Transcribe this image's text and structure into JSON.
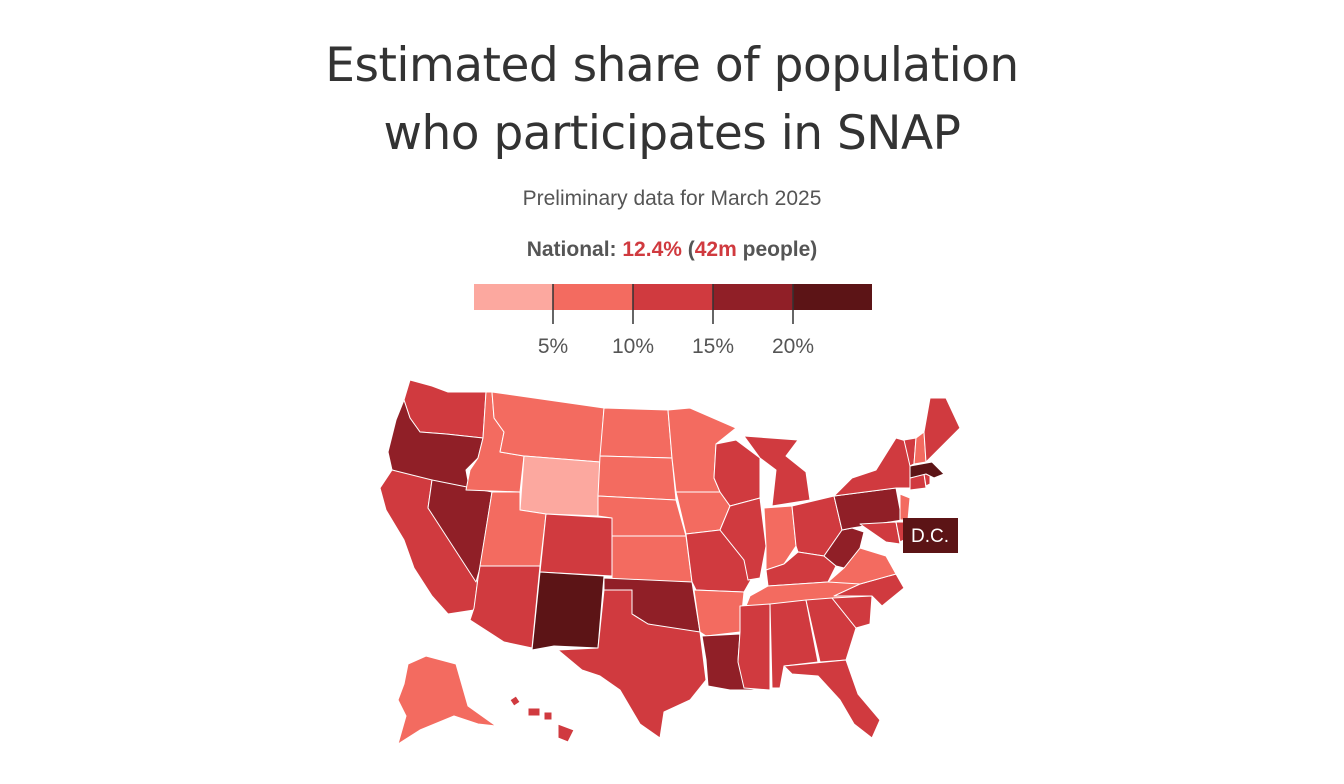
{
  "title_line1": "Estimated share of population",
  "title_line2": "who participates in SNAP",
  "subtitle": "Preliminary data for March 2025",
  "national": {
    "label": "National:",
    "pct": "12.4%",
    "open_paren": " (",
    "people_count": "42m",
    "people_word": " people",
    "close_paren": ")"
  },
  "legend": {
    "bins": [
      {
        "color": "#fca89f"
      },
      {
        "color": "#f36b60"
      },
      {
        "color": "#d03a3f"
      },
      {
        "color": "#901f27"
      },
      {
        "color": "#5c1416"
      }
    ],
    "ticks": [
      "5%",
      "10%",
      "15%",
      "20%"
    ]
  },
  "map": {
    "callout": "D.C.",
    "colors": {
      "bin1": "#fca89f",
      "bin2": "#f36b60",
      "bin3": "#d03a3f",
      "bin4": "#901f27",
      "bin5": "#5c1416"
    }
  }
}
